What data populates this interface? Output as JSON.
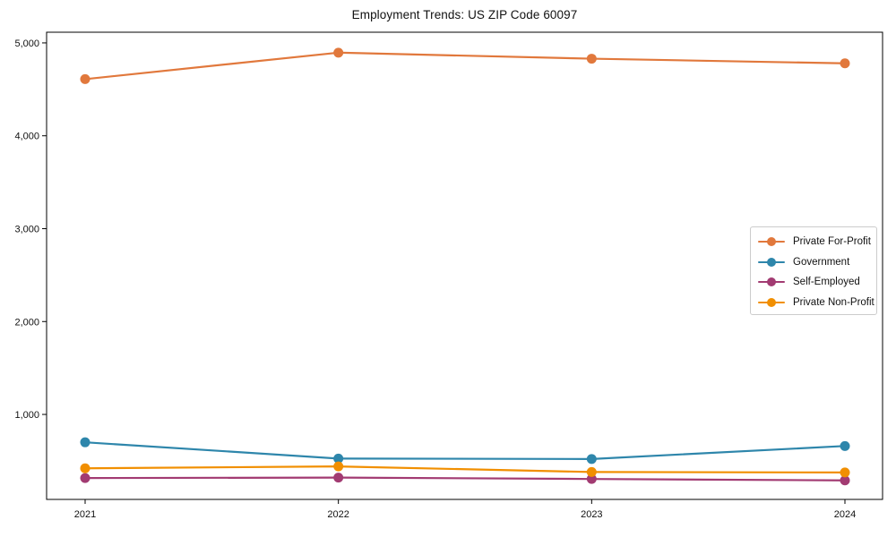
{
  "chart_data": {
    "type": "line",
    "title": "Employment Trends: US ZIP Code 60097",
    "categories": [
      "2021",
      "2022",
      "2023",
      "2024"
    ],
    "series": [
      {
        "name": "Private For-Profit",
        "color": "#E1783C",
        "values": [
          4610,
          4895,
          4830,
          4780
        ]
      },
      {
        "name": "Government",
        "color": "#2E86AB",
        "values": [
          700,
          525,
          520,
          660
        ]
      },
      {
        "name": "Self-Employed",
        "color": "#A23B72",
        "values": [
          315,
          320,
          305,
          290
        ]
      },
      {
        "name": "Private Non-Profit",
        "color": "#F18F01",
        "values": [
          420,
          440,
          380,
          375
        ]
      }
    ],
    "xlabel": "",
    "ylabel": "",
    "ylim": [
      85,
      5115
    ],
    "yticks": [
      1000,
      2000,
      3000,
      4000,
      5000
    ],
    "ytick_labels": [
      "1,000",
      "2,000",
      "3,000",
      "4,000",
      "5,000"
    ],
    "grid": false,
    "marker": "circle",
    "legend_position": "center-right"
  }
}
